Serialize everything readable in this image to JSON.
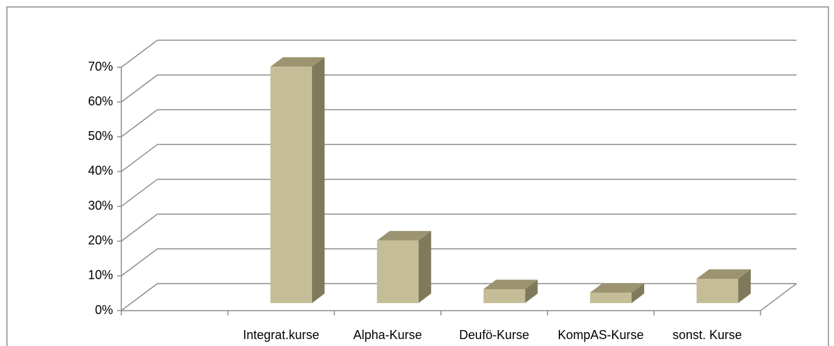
{
  "chart_data": {
    "type": "bar3d",
    "categories": [
      null,
      "Integrat.kurse",
      "Alpha-Kurse",
      "Deufö-Kurse",
      "KompAS-Kurse",
      "sonst. Kurse"
    ],
    "values": [
      null,
      68,
      18,
      4,
      3,
      7
    ],
    "color": "#c4bd97",
    "ylim": [
      0,
      70
    ],
    "yticks": [
      {
        "value": 0,
        "label": "0%"
      },
      {
        "value": 10,
        "label": "10%"
      },
      {
        "value": 20,
        "label": "20%"
      },
      {
        "value": 30,
        "label": "30%"
      },
      {
        "value": 40,
        "label": "40%"
      },
      {
        "value": 50,
        "label": "50%"
      },
      {
        "value": 60,
        "label": "60%"
      },
      {
        "value": 70,
        "label": "70%"
      }
    ],
    "grid": true
  }
}
